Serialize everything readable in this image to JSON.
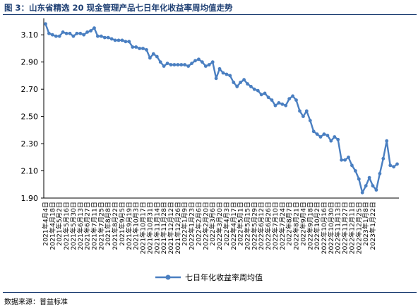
{
  "title": {
    "prefix": "图 3：",
    "text": "山东省精选 20 现金管理产品七日年化收益率周均值走势"
  },
  "source": "数据来源：普益标准",
  "colors": {
    "line": "#4a7fc1",
    "marker": "#4a7fc1",
    "axis": "#000000",
    "title": "#1e3f73"
  },
  "chart_data": {
    "type": "line",
    "title": "山东省精选 20 现金管理产品七日年化收益率周均值走势",
    "xlabel": "",
    "ylabel": "",
    "ylim": [
      1.9,
      3.2
    ],
    "yticks": [
      "1.90",
      "2.10",
      "2.30",
      "2.50",
      "2.70",
      "2.90",
      "3.10"
    ],
    "ytick_values": [
      1.9,
      2.1,
      2.3,
      2.5,
      2.7,
      2.9,
      3.1
    ],
    "grid": false,
    "legend_position": "bottom-center",
    "x_tick_labels": [
      "2021年4月4日",
      "2021年4月18日",
      "2021年5月2日",
      "2021年5月16日",
      "2021年5月30日",
      "2021年6月13日",
      "2021年6月27日",
      "2021年7月11日",
      "2021年7月25日",
      "2021年8月8日",
      "2021年8月22日",
      "2021年9月5日",
      "2021年9月19日",
      "2021年10月3日",
      "2021年10月17日",
      "2021年10月31日",
      "2021年11月14日",
      "2021年11月28日",
      "2021年12月12日",
      "2021年12月26日",
      "2022年1月9日",
      "2022年1月23日",
      "2022年2月6日",
      "2022年2月20日",
      "2022年3月6日",
      "2022年3月20日",
      "2022年4月3日",
      "2022年4月17日",
      "2022年5月1日",
      "2022年5月15日",
      "2022年5月29日",
      "2022年6月12日",
      "2022年6月26日",
      "2022年7月10日",
      "2022年7月24日",
      "2022年8月7日",
      "2022年8月21日",
      "2022年9月4日",
      "2022年9月18日",
      "2022年10月2日",
      "2022年10月16日",
      "2022年10月30日",
      "2022年11月13日",
      "2022年11月27日",
      "2022年12月11日",
      "2022年12月25日",
      "2023年1月8日",
      "2023年1月22日"
    ],
    "series": [
      {
        "name": "七日年化收益率周均值",
        "values": [
          3.18,
          3.11,
          3.1,
          3.09,
          3.09,
          3.12,
          3.11,
          3.11,
          3.09,
          3.11,
          3.11,
          3.1,
          3.12,
          3.13,
          3.15,
          3.09,
          3.09,
          3.08,
          3.08,
          3.07,
          3.06,
          3.06,
          3.06,
          3.05,
          3.05,
          3.01,
          3.01,
          3.0,
          3.0,
          2.99,
          2.93,
          2.96,
          2.94,
          2.9,
          2.87,
          2.89,
          2.88,
          2.88,
          2.88,
          2.88,
          2.88,
          2.87,
          2.89,
          2.91,
          2.92,
          2.9,
          2.87,
          2.88,
          2.9,
          2.78,
          2.85,
          2.82,
          2.81,
          2.8,
          2.75,
          2.72,
          2.75,
          2.77,
          2.74,
          2.72,
          2.7,
          2.69,
          2.66,
          2.67,
          2.64,
          2.62,
          2.58,
          2.6,
          2.59,
          2.58,
          2.63,
          2.65,
          2.62,
          2.54,
          2.5,
          2.54,
          2.47,
          2.39,
          2.37,
          2.35,
          2.37,
          2.36,
          2.32,
          2.35,
          2.33,
          2.18,
          2.18,
          2.2,
          2.14,
          2.1,
          2.04,
          1.94,
          1.99,
          2.05,
          1.99,
          1.96,
          2.08,
          2.19,
          2.32,
          2.14,
          2.13,
          2.15
        ]
      }
    ]
  }
}
